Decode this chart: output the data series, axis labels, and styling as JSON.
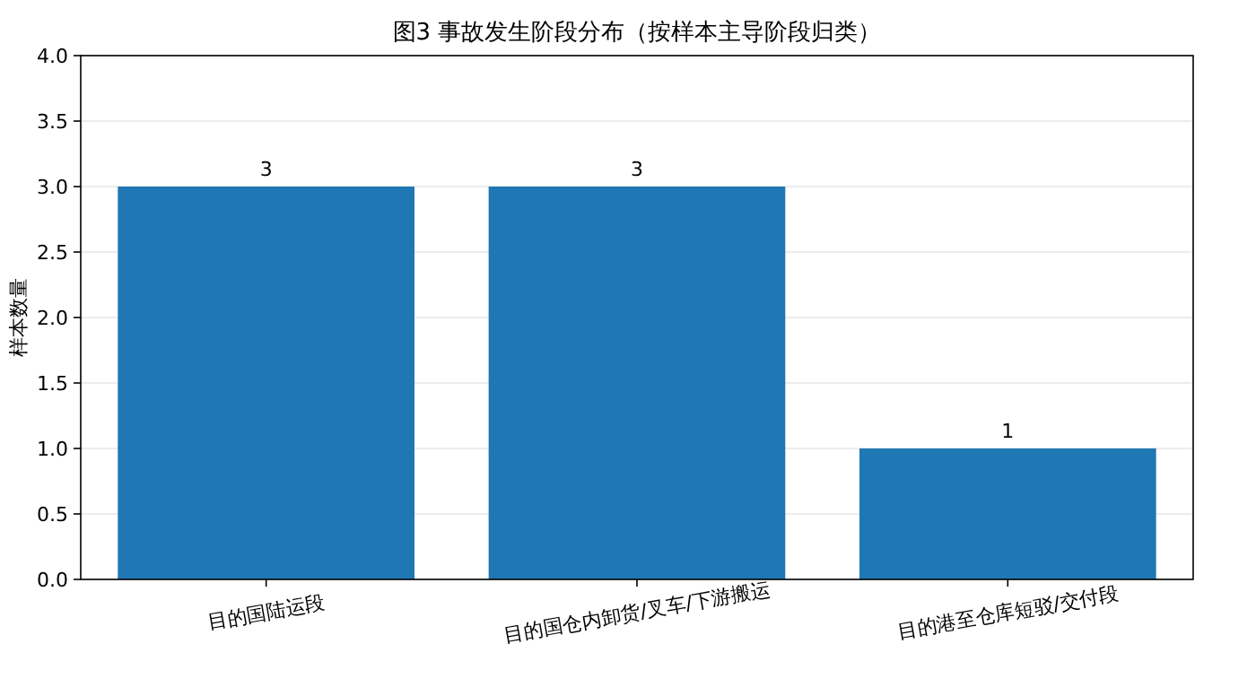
{
  "chart_data": {
    "type": "bar",
    "title": "图3 事故发生阶段分布（按样本主导阶段归类）",
    "ylabel": "样本数量",
    "categories": [
      "目的国陆运段",
      "目的国仓内卸货/叉车/下游搬运",
      "目的港至仓库短驳/交付段"
    ],
    "values": [
      3,
      3,
      1
    ],
    "color": "#1f77b4",
    "ylim": [
      0,
      4
    ],
    "yticks": [
      {
        "value": 0,
        "label": "0.0"
      },
      {
        "value": 0.5,
        "label": "0.5"
      },
      {
        "value": 1,
        "label": "1.0"
      },
      {
        "value": 1.5,
        "label": "1.5"
      },
      {
        "value": 2,
        "label": "2.0"
      },
      {
        "value": 2.5,
        "label": "2.5"
      },
      {
        "value": 3,
        "label": "3.0"
      },
      {
        "value": 3.5,
        "label": "3.5"
      },
      {
        "value": 4,
        "label": "4.0"
      }
    ],
    "grid": "y",
    "data_labels": true
  }
}
